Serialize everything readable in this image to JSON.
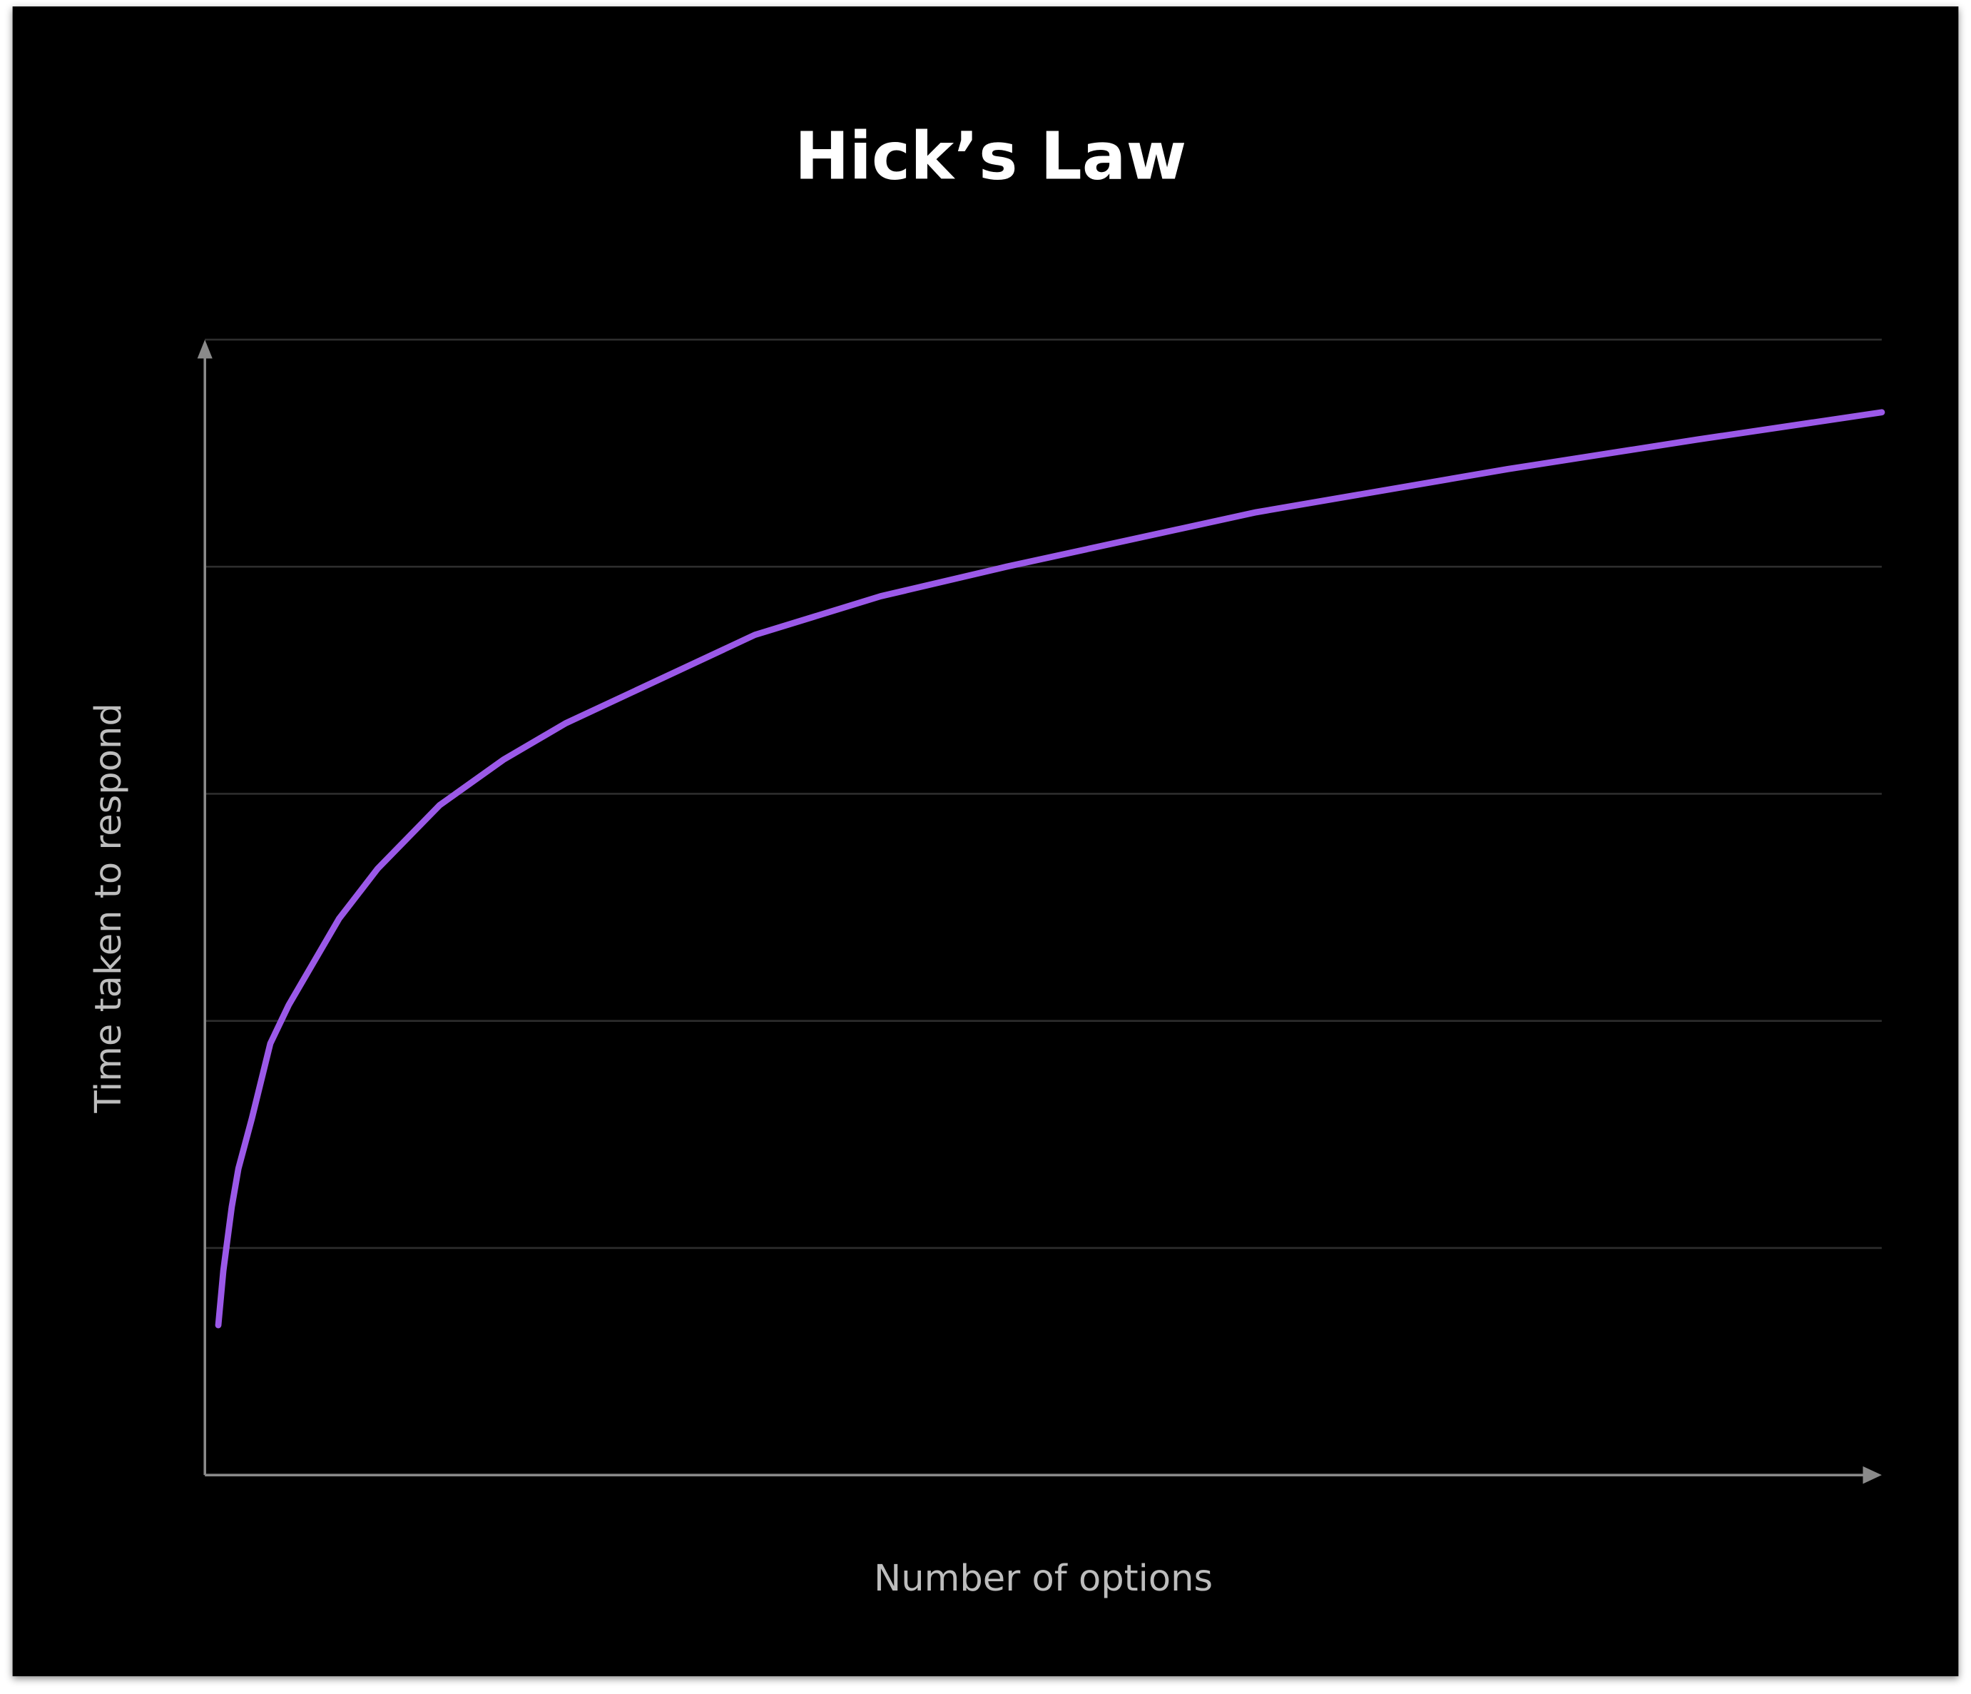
{
  "chart_data": {
    "type": "line",
    "title": "Hick’s Law",
    "x_label": "Number of options",
    "y_label": "Time taken to respond",
    "x": [
      0.8,
      1.1,
      1.6,
      2.0,
      2.8,
      3.9,
      5.0,
      8.0,
      10.3,
      14.0,
      17.8,
      21.5,
      32.8,
      40.3,
      47.8,
      62.7,
      77.7,
      89.0,
      100
    ],
    "series": [
      {
        "name": "Time taken to respond",
        "color": "#9b59e8",
        "values": [
          0.66,
          0.9,
          1.18,
          1.35,
          1.57,
          1.9,
          2.07,
          2.45,
          2.67,
          2.95,
          3.15,
          3.31,
          3.7,
          3.87,
          4.0,
          4.24,
          4.43,
          4.56,
          4.68
        ]
      }
    ],
    "xlim": [
      0,
      100
    ],
    "ylim": [
      0,
      5
    ],
    "gridlines": [
      1,
      2,
      3,
      4,
      5
    ],
    "grid": true,
    "legend": false
  }
}
